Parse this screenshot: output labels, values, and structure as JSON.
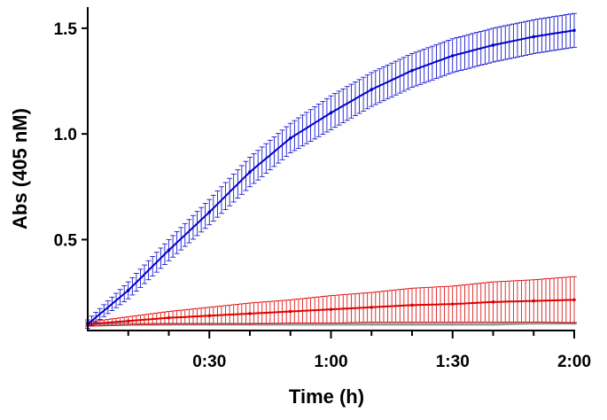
{
  "chart_data": {
    "type": "line",
    "xlabel": "Time (h)",
    "ylabel": "Abs (405 nM)",
    "xlim": [
      0,
      120
    ],
    "ylim": [
      0.07,
      1.6
    ],
    "x_ticks": [
      {
        "value": 30,
        "label": "0:30"
      },
      {
        "value": 60,
        "label": "1:00"
      },
      {
        "value": 90,
        "label": "1:30"
      },
      {
        "value": 120,
        "label": "2:00"
      }
    ],
    "x_minor_ticks": [
      10,
      20,
      40,
      50,
      70,
      80,
      100,
      110
    ],
    "y_ticks": [
      {
        "value": 0.5,
        "label": "0.5"
      },
      {
        "value": 1.0,
        "label": "1.0"
      },
      {
        "value": 1.5,
        "label": "1.5"
      }
    ],
    "grid": false,
    "series": [
      {
        "color": "#0000cc",
        "x": [
          0,
          10,
          20,
          30,
          40,
          50,
          60,
          70,
          80,
          90,
          100,
          110,
          120
        ],
        "y": [
          0.1,
          0.26,
          0.45,
          0.63,
          0.82,
          0.98,
          1.1,
          1.21,
          1.3,
          1.37,
          1.42,
          1.46,
          1.49
        ],
        "err": [
          0.02,
          0.04,
          0.05,
          0.06,
          0.07,
          0.07,
          0.08,
          0.08,
          0.08,
          0.08,
          0.08,
          0.08,
          0.08
        ]
      },
      {
        "color": "#dd0000",
        "x": [
          0,
          10,
          20,
          30,
          40,
          50,
          60,
          70,
          80,
          90,
          100,
          110,
          120
        ],
        "y": [
          0.1,
          0.115,
          0.13,
          0.14,
          0.15,
          0.16,
          0.17,
          0.18,
          0.19,
          0.195,
          0.205,
          0.21,
          0.215
        ],
        "err": [
          0.01,
          0.02,
          0.03,
          0.04,
          0.05,
          0.055,
          0.065,
          0.07,
          0.08,
          0.085,
          0.095,
          0.1,
          0.11
        ]
      },
      {
        "color": "#999999",
        "x": [
          0,
          10,
          20,
          30,
          40,
          50,
          60,
          70,
          80,
          90,
          100,
          110,
          120
        ],
        "y": [
          0.1,
          0.1,
          0.1,
          0.1,
          0.1,
          0.1,
          0.1,
          0.1,
          0.1,
          0.1,
          0.1,
          0.105,
          0.105
        ],
        "err": [
          0.005,
          0.005,
          0.005,
          0.005,
          0.005,
          0.005,
          0.005,
          0.005,
          0.005,
          0.005,
          0.005,
          0.005,
          0.005
        ]
      }
    ]
  }
}
